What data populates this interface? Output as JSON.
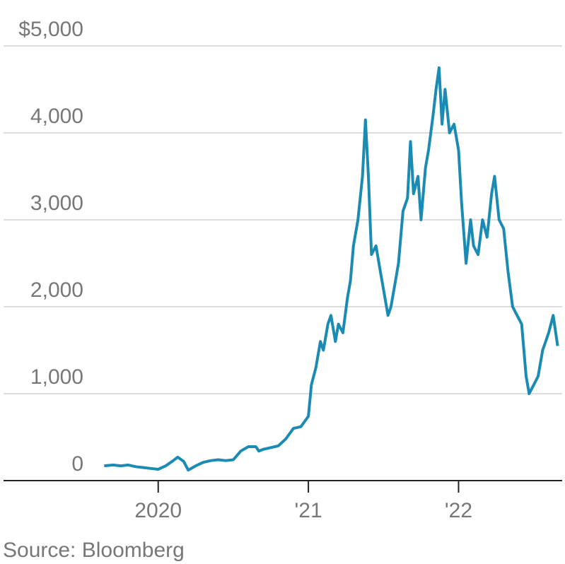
{
  "chart_data": {
    "type": "line",
    "x": [
      2019.64,
      2019.7,
      2019.75,
      2019.8,
      2019.85,
      2019.9,
      2019.95,
      2020.0,
      2020.05,
      2020.1,
      2020.13,
      2020.17,
      2020.2,
      2020.25,
      2020.3,
      2020.35,
      2020.4,
      2020.45,
      2020.5,
      2020.55,
      2020.6,
      2020.65,
      2020.67,
      2020.7,
      2020.75,
      2020.8,
      2020.85,
      2020.9,
      2020.95,
      2021.0,
      2021.02,
      2021.05,
      2021.08,
      2021.1,
      2021.13,
      2021.15,
      2021.18,
      2021.2,
      2021.23,
      2021.26,
      2021.28,
      2021.3,
      2021.33,
      2021.36,
      2021.38,
      2021.4,
      2021.42,
      2021.45,
      2021.48,
      2021.5,
      2021.53,
      2021.55,
      2021.58,
      2021.6,
      2021.63,
      2021.66,
      2021.68,
      2021.7,
      2021.73,
      2021.75,
      2021.78,
      2021.8,
      2021.83,
      2021.85,
      2021.87,
      2021.89,
      2021.91,
      2021.94,
      2021.97,
      2022.0,
      2022.02,
      2022.05,
      2022.08,
      2022.1,
      2022.13,
      2022.16,
      2022.19,
      2022.22,
      2022.24,
      2022.27,
      2022.3,
      2022.33,
      2022.36,
      2022.39,
      2022.42,
      2022.45,
      2022.47,
      2022.5,
      2022.53,
      2022.56,
      2022.6,
      2022.63,
      2022.66
    ],
    "values": [
      170,
      180,
      170,
      180,
      160,
      150,
      140,
      130,
      170,
      230,
      270,
      220,
      120,
      170,
      210,
      230,
      240,
      230,
      240,
      340,
      390,
      390,
      340,
      360,
      380,
      400,
      480,
      600,
      620,
      740,
      1100,
      1300,
      1600,
      1500,
      1800,
      1900,
      1600,
      1800,
      1700,
      2100,
      2300,
      2700,
      3000,
      3500,
      4150,
      3500,
      2600,
      2700,
      2400,
      2200,
      1900,
      2000,
      2300,
      2500,
      3100,
      3250,
      3900,
      3300,
      3500,
      3000,
      3600,
      3800,
      4200,
      4500,
      4750,
      4100,
      4500,
      4000,
      4100,
      3800,
      3200,
      2500,
      3000,
      2700,
      2600,
      3000,
      2800,
      3300,
      3500,
      3000,
      2900,
      2400,
      2000,
      1900,
      1800,
      1200,
      1000,
      1100,
      1200,
      1500,
      1700,
      1900,
      1550
    ],
    "color": "#1b8bb4",
    "xlim": [
      2018.97,
      2022.69
    ],
    "xticks": [
      {
        "value": 2020,
        "label": "2020"
      },
      {
        "value": 2021,
        "label": "'21"
      },
      {
        "value": 2022,
        "label": "'22"
      }
    ],
    "ylim": [
      0,
      5000
    ],
    "yticks": [
      0,
      {
        "value": 1000,
        "label": "1,000"
      },
      {
        "value": 2000,
        "label": "2,000"
      },
      {
        "value": 3000,
        "label": "3,000"
      },
      {
        "value": 4000,
        "label": "4,000"
      },
      {
        "value": 5000,
        "label": "$5,000"
      }
    ],
    "grid": true,
    "source": "Source: Bloomberg"
  }
}
